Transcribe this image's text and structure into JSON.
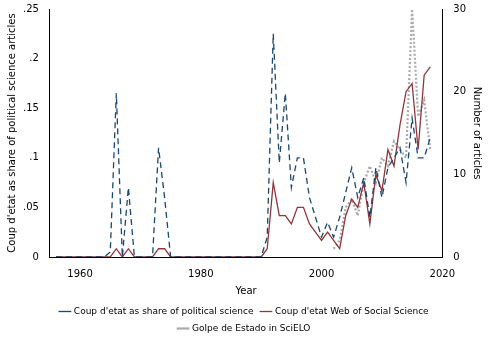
{
  "chart_data": {
    "type": "line",
    "xlabel": "Year",
    "ylabel": "Coup d'etat as share of political science articles",
    "y2label": "Number of articles",
    "x": [
      1956,
      1957,
      1958,
      1959,
      1960,
      1961,
      1962,
      1963,
      1964,
      1965,
      1966,
      1967,
      1968,
      1969,
      1970,
      1971,
      1972,
      1973,
      1974,
      1975,
      1976,
      1977,
      1978,
      1979,
      1980,
      1981,
      1982,
      1983,
      1984,
      1985,
      1986,
      1987,
      1988,
      1989,
      1990,
      1991,
      1992,
      1993,
      1994,
      1995,
      1996,
      1997,
      1998,
      1999,
      2000,
      2001,
      2002,
      2003,
      2004,
      2005,
      2006,
      2007,
      2008,
      2009,
      2010,
      2011,
      2012,
      2013,
      2014,
      2015,
      2016,
      2017,
      2018
    ],
    "series": [
      {
        "name": "Coup d'etat as share of political science",
        "color": "#1a476f",
        "line_style": "dashed",
        "axis": "y",
        "values": [
          0,
          0,
          0,
          0,
          0,
          0,
          0,
          0,
          0,
          0.005,
          0.165,
          0,
          0.07,
          0,
          0,
          0,
          0,
          0.11,
          0.06,
          0,
          0,
          0,
          0,
          0,
          0,
          0,
          0,
          0,
          0,
          0,
          0,
          0,
          0,
          0,
          0,
          0.02,
          0.225,
          0.095,
          0.165,
          0.07,
          0.1,
          0.1,
          0.06,
          0.04,
          0.02,
          0.035,
          0.02,
          0.04,
          0.065,
          0.09,
          0.06,
          0.08,
          0.04,
          0.09,
          0.06,
          0.09,
          0.1,
          0.11,
          0.075,
          0.14,
          0.1,
          0.1,
          0.12
        ]
      },
      {
        "name": "Coup d'etat Web of Social Science",
        "color": "#90353b",
        "line_style": "solid",
        "axis": "y2",
        "values": [
          0,
          0,
          0,
          0,
          0,
          0,
          0,
          0,
          0,
          0,
          1,
          0,
          1,
          0,
          0,
          0,
          0,
          1,
          1,
          0,
          0,
          0,
          0,
          0,
          0,
          0,
          0,
          0,
          0,
          0,
          0,
          0,
          0,
          0,
          0,
          1,
          9,
          5,
          5,
          4,
          6,
          6,
          4,
          3,
          2,
          3,
          2,
          1,
          5,
          7,
          6,
          9,
          4,
          10,
          8,
          13,
          11,
          16,
          20,
          21,
          13,
          22,
          23
        ]
      },
      {
        "name": "Golpe de Estado in SciELO",
        "color": "#aaaaaa",
        "line_style": "dotted",
        "axis": "y2",
        "values": [
          null,
          null,
          null,
          null,
          null,
          null,
          null,
          null,
          null,
          null,
          null,
          null,
          null,
          null,
          null,
          null,
          null,
          null,
          null,
          null,
          null,
          null,
          null,
          null,
          null,
          null,
          null,
          null,
          null,
          null,
          null,
          null,
          null,
          null,
          null,
          null,
          null,
          null,
          null,
          null,
          null,
          null,
          null,
          null,
          null,
          null,
          1,
          2,
          6,
          7,
          5,
          9,
          11,
          9,
          12,
          11,
          14,
          13,
          12,
          30,
          17,
          19,
          13
        ]
      }
    ],
    "xlim": [
      1955,
      2020
    ],
    "xticks": [
      1960,
      1980,
      2000,
      2020
    ],
    "ylim": [
      0,
      0.25
    ],
    "yticks": [
      0,
      {
        "value": 0.05,
        "label": ".05"
      },
      {
        "value": 0.1,
        "label": ".1"
      },
      {
        "value": 0.15,
        "label": ".15"
      },
      {
        "value": 0.2,
        "label": ".2"
      },
      {
        "value": 0.25,
        "label": ".25"
      }
    ],
    "y2lim": [
      0,
      30
    ],
    "y2ticks": [
      0,
      10,
      20,
      30
    ],
    "grid": false,
    "legend": "bottom"
  }
}
